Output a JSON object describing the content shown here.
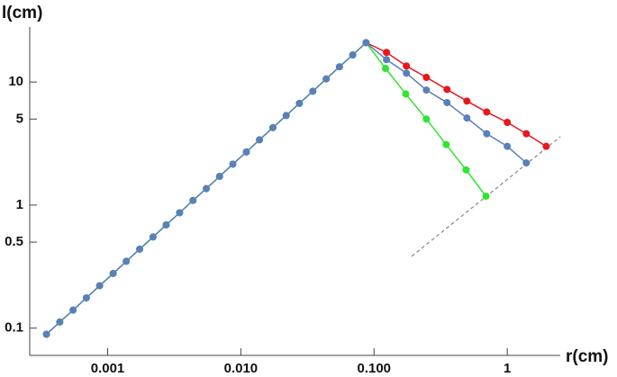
{
  "chart_data": {
    "type": "line",
    "x_label": "r(cm)",
    "y_label": "l(cm)",
    "log_x": true,
    "log_y": true,
    "markers": true,
    "xlim": [
      0.00026,
      2.5
    ],
    "ylim": [
      0.06,
      28
    ],
    "xticks": [
      0.001,
      {
        "value": 0.01,
        "label": "0.010"
      },
      {
        "value": 0.1,
        "label": "0.100"
      },
      1
    ],
    "yticks": [
      0.1,
      0.5,
      1,
      5,
      10
    ],
    "series": [
      {
        "color": "#e8171c",
        "x": [
          0.0871,
          0.124,
          0.175,
          0.247,
          0.353,
          0.498,
          0.701,
          1.0,
          1.39,
          1.96
        ],
        "values": [
          20.9,
          17.4,
          13.5,
          10.9,
          8.7,
          7.0,
          5.7,
          4.7,
          3.8,
          3.0
        ]
      },
      {
        "color": "#2ee62e",
        "x": [
          0.000347,
          0.000437,
          0.00055,
          0.000692,
          0.000871,
          0.0011,
          0.00138,
          0.00174,
          0.00219,
          0.00275,
          0.00347,
          0.00437,
          0.0055,
          0.00692,
          0.00871,
          0.011,
          0.0138,
          0.0174,
          0.0219,
          0.0275,
          0.0347,
          0.0437,
          0.055,
          0.0692,
          0.0871,
          0.122,
          0.173,
          0.247,
          0.348,
          0.491,
          0.692
        ],
        "values": [
          0.0891,
          0.112,
          0.14,
          0.176,
          0.221,
          0.278,
          0.349,
          0.438,
          0.55,
          0.69,
          0.866,
          1.09,
          1.36,
          1.71,
          2.15,
          2.7,
          3.39,
          4.26,
          5.34,
          6.7,
          8.41,
          10.6,
          13.3,
          16.6,
          20.9,
          12.9,
          8.0,
          5.0,
          3.1,
          1.93,
          1.18
        ]
      },
      {
        "color": "#5b7fb8",
        "x": [
          0.000347,
          0.000437,
          0.00055,
          0.000692,
          0.000871,
          0.0011,
          0.00138,
          0.00174,
          0.00219,
          0.00275,
          0.00347,
          0.00437,
          0.0055,
          0.00692,
          0.00871,
          0.011,
          0.0138,
          0.0174,
          0.0219,
          0.0275,
          0.0347,
          0.0437,
          0.055,
          0.0692,
          0.0871,
          0.124,
          0.175,
          0.247,
          0.353,
          0.498,
          0.701,
          1.0,
          1.39
        ],
        "values": [
          0.0891,
          0.112,
          0.14,
          0.176,
          0.221,
          0.278,
          0.349,
          0.438,
          0.55,
          0.69,
          0.866,
          1.09,
          1.36,
          1.71,
          2.15,
          2.7,
          3.39,
          4.26,
          5.34,
          6.7,
          8.41,
          10.6,
          13.3,
          16.6,
          20.9,
          15.2,
          11.8,
          8.6,
          6.8,
          5.1,
          3.8,
          3.0,
          2.2
        ]
      }
    ],
    "reference_line": {
      "color": "#888888",
      "dashed": true,
      "x": [
        0.192,
        2.51
      ],
      "values": [
        0.384,
        3.6
      ]
    }
  }
}
